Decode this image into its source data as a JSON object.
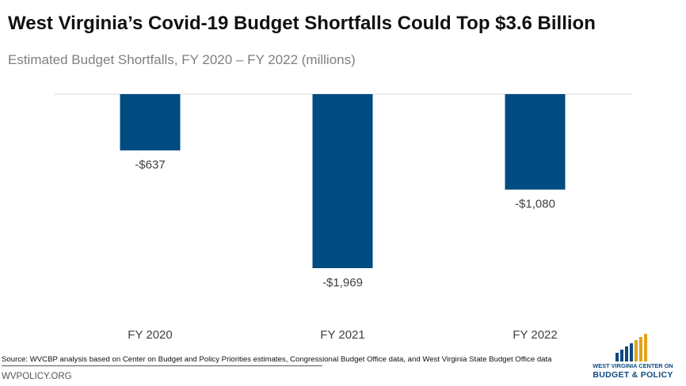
{
  "header": {
    "title": "West Virginia’s Covid-19 Budget Shortfalls Could Top $3.6 Billion",
    "subtitle": "Estimated Budget Shortfalls, FY 2020 – FY 2022 (millions)"
  },
  "footer": {
    "source": "Source: WVCBP analysis based on Center on Budget and Policy Priorities estimates, Congressional Budget Office data, and West Virginia State Budget Office data",
    "site": "WVPOLICY.ORG"
  },
  "logo": {
    "line1": "WEST VIRGINIA CENTER ON",
    "line2": "BUDGET & POLICY",
    "blue": "#0d4a80",
    "gold": "#e2a31c"
  },
  "colors": {
    "bar": "#004b80",
    "axis": "#d9d9d9",
    "label": "#404040"
  },
  "chart_data": {
    "type": "bar",
    "categories": [
      "FY 2020",
      "FY 2021",
      "FY 2022"
    ],
    "values": [
      -637,
      -1969,
      -1080
    ],
    "data_labels": [
      "-$637",
      "-$1,969",
      "-$1,080"
    ],
    "title": "West Virginia’s Covid-19 Budget Shortfalls Could Top $3.6 Billion",
    "subtitle": "Estimated Budget Shortfalls, FY 2020 – FY 2022 (millions)",
    "ylim": [
      -2000,
      0
    ],
    "grid": false,
    "legend": "none"
  }
}
